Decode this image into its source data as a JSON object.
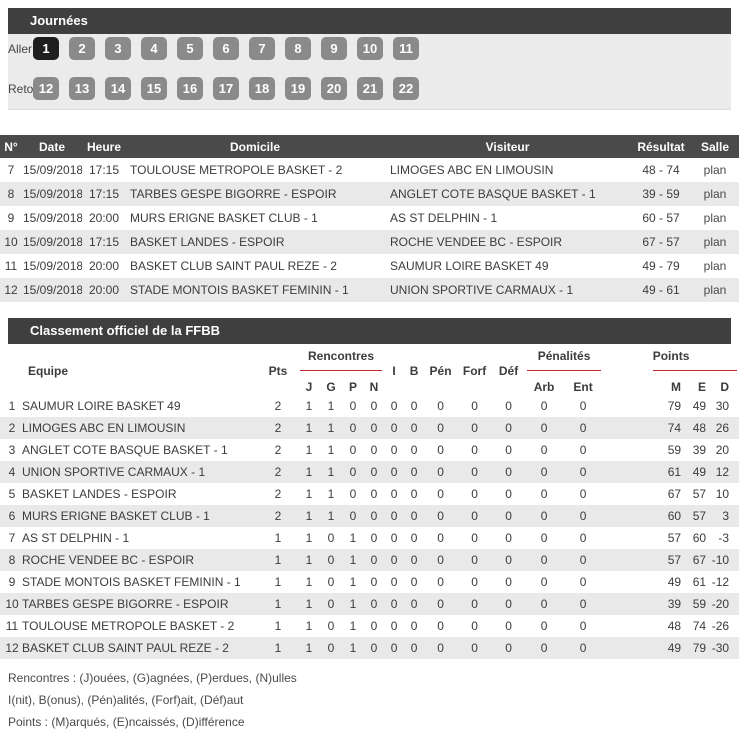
{
  "colors": {
    "header_bar": "#3f3f3f",
    "table_header": "#4a4a4a",
    "button": "#8a8a8a",
    "active_button": "#1e1e1e",
    "panel_bg": "#ebebeb",
    "alt_row": "#e9e9e9",
    "accent_red": "#c0262c"
  },
  "journees": {
    "title": "Journées",
    "aller_label": "Aller",
    "retour_label": "Retour",
    "active_button": "1",
    "aller_buttons": [
      "1",
      "2",
      "3",
      "4",
      "5",
      "6",
      "7",
      "8",
      "9",
      "10",
      "11"
    ],
    "retour_buttons": [
      "12",
      "13",
      "14",
      "15",
      "16",
      "17",
      "18",
      "19",
      "20",
      "21",
      "22"
    ]
  },
  "results": {
    "columns": {
      "num": "N°",
      "date": "Date",
      "time": "Heure",
      "home": "Domicile",
      "visitor": "Visiteur",
      "score": "Résultat",
      "venue": "Salle"
    },
    "rows": [
      {
        "num": "7",
        "date": "15/09/2018",
        "time": "17:15",
        "home": "TOULOUSE METROPOLE BASKET - 2",
        "visitor": "LIMOGES ABC EN LIMOUSIN",
        "score": "48 - 74",
        "venue": "plan"
      },
      {
        "num": "8",
        "date": "15/09/2018",
        "time": "17:15",
        "home": "TARBES GESPE BIGORRE - ESPOIR",
        "visitor": "ANGLET COTE BASQUE BASKET - 1",
        "score": "39 - 59",
        "venue": "plan"
      },
      {
        "num": "9",
        "date": "15/09/2018",
        "time": "20:00",
        "home": "MURS ERIGNE BASKET CLUB - 1",
        "visitor": "AS ST DELPHIN - 1",
        "score": "60 - 57",
        "venue": "plan"
      },
      {
        "num": "10",
        "date": "15/09/2018",
        "time": "17:15",
        "home": "BASKET LANDES - ESPOIR",
        "visitor": "ROCHE VENDEE BC - ESPOIR",
        "score": "67 - 57",
        "venue": "plan"
      },
      {
        "num": "11",
        "date": "15/09/2018",
        "time": "20:00",
        "home": "BASKET CLUB SAINT PAUL REZE - 2",
        "visitor": "SAUMUR LOIRE BASKET 49",
        "score": "49 - 79",
        "venue": "plan"
      },
      {
        "num": "12",
        "date": "15/09/2018",
        "time": "20:00",
        "home": "STADE MONTOIS BASKET FEMININ - 1",
        "visitor": "UNION SPORTIVE CARMAUX - 1",
        "score": "49 - 61",
        "venue": "plan"
      }
    ]
  },
  "standings": {
    "title": "Classement officiel de la FFBB",
    "columns": {
      "equipe": "Equipe",
      "pts": "Pts",
      "rencontres_group": "Rencontres",
      "j": "J",
      "g": "G",
      "p": "P",
      "n": "N",
      "i": "I",
      "b": "B",
      "pen": "Pén",
      "forf": "Forf",
      "def": "Déf",
      "penalites_group": "Pénalités",
      "arb": "Arb",
      "ent": "Ent",
      "points_group": "Points",
      "m": "M",
      "e": "E",
      "d": "D"
    },
    "rows": [
      {
        "rank": "1",
        "team": "SAUMUR LOIRE BASKET 49",
        "values": [
          "2",
          "1",
          "1",
          "0",
          "0",
          "0",
          "0",
          "0",
          "0",
          "0",
          "0",
          "0",
          "79",
          "49",
          "30"
        ]
      },
      {
        "rank": "2",
        "team": "LIMOGES ABC EN LIMOUSIN",
        "values": [
          "2",
          "1",
          "1",
          "0",
          "0",
          "0",
          "0",
          "0",
          "0",
          "0",
          "0",
          "0",
          "74",
          "48",
          "26"
        ]
      },
      {
        "rank": "3",
        "team": "ANGLET COTE BASQUE BASKET - 1",
        "values": [
          "2",
          "1",
          "1",
          "0",
          "0",
          "0",
          "0",
          "0",
          "0",
          "0",
          "0",
          "0",
          "59",
          "39",
          "20"
        ]
      },
      {
        "rank": "4",
        "team": "UNION SPORTIVE CARMAUX - 1",
        "values": [
          "2",
          "1",
          "1",
          "0",
          "0",
          "0",
          "0",
          "0",
          "0",
          "0",
          "0",
          "0",
          "61",
          "49",
          "12"
        ]
      },
      {
        "rank": "5",
        "team": "BASKET LANDES - ESPOIR",
        "values": [
          "2",
          "1",
          "1",
          "0",
          "0",
          "0",
          "0",
          "0",
          "0",
          "0",
          "0",
          "0",
          "67",
          "57",
          "10"
        ]
      },
      {
        "rank": "6",
        "team": "MURS ERIGNE BASKET CLUB - 1",
        "values": [
          "2",
          "1",
          "1",
          "0",
          "0",
          "0",
          "0",
          "0",
          "0",
          "0",
          "0",
          "0",
          "60",
          "57",
          "3"
        ]
      },
      {
        "rank": "7",
        "team": "AS ST DELPHIN - 1",
        "values": [
          "1",
          "1",
          "0",
          "1",
          "0",
          "0",
          "0",
          "0",
          "0",
          "0",
          "0",
          "0",
          "57",
          "60",
          "-3"
        ]
      },
      {
        "rank": "8",
        "team": "ROCHE VENDEE BC - ESPOIR",
        "values": [
          "1",
          "1",
          "0",
          "1",
          "0",
          "0",
          "0",
          "0",
          "0",
          "0",
          "0",
          "0",
          "57",
          "67",
          "-10"
        ]
      },
      {
        "rank": "9",
        "team": "STADE MONTOIS BASKET FEMININ - 1",
        "values": [
          "1",
          "1",
          "0",
          "1",
          "0",
          "0",
          "0",
          "0",
          "0",
          "0",
          "0",
          "0",
          "49",
          "61",
          "-12"
        ]
      },
      {
        "rank": "10",
        "team": "TARBES GESPE BIGORRE - ESPOIR",
        "values": [
          "1",
          "1",
          "0",
          "1",
          "0",
          "0",
          "0",
          "0",
          "0",
          "0",
          "0",
          "0",
          "39",
          "59",
          "-20"
        ]
      },
      {
        "rank": "11",
        "team": "TOULOUSE METROPOLE BASKET - 2",
        "values": [
          "1",
          "1",
          "0",
          "1",
          "0",
          "0",
          "0",
          "0",
          "0",
          "0",
          "0",
          "0",
          "48",
          "74",
          "-26"
        ]
      },
      {
        "rank": "12",
        "team": "BASKET CLUB SAINT PAUL REZE - 2",
        "values": [
          "1",
          "1",
          "0",
          "1",
          "0",
          "0",
          "0",
          "0",
          "0",
          "0",
          "0",
          "0",
          "49",
          "79",
          "-30"
        ]
      }
    ],
    "legend": [
      "Rencontres : (J)ouées, (G)agnées, (P)erdues, (N)ulles",
      "I(nit), B(onus), (Pén)alités, (Forf)ait, (Déf)aut",
      "Points : (M)arqués, (E)ncaissés, (D)ifférence"
    ]
  }
}
